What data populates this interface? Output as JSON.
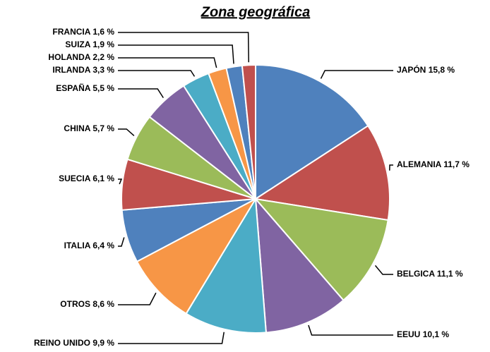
{
  "chart_data": {
    "type": "pie",
    "title": "Zona geográfica",
    "categories": [
      "JAPÓN",
      "ALEMANIA",
      "BELGICA",
      "EEUU",
      "REINO UNIDO",
      "OTROS",
      "ITALIA",
      "SUECIA",
      "CHINA",
      "ESPAÑA",
      "IRLANDA",
      "HOLANDA",
      "SUIZA",
      "FRANCIA"
    ],
    "values": [
      15.8,
      11.7,
      11.1,
      10.1,
      9.9,
      8.6,
      6.4,
      6.1,
      5.7,
      5.5,
      3.3,
      2.2,
      1.9,
      1.6
    ],
    "value_labels": [
      "15,8 %",
      "11,7 %",
      "11,1 %",
      "10,1 %",
      "9,9 %",
      "8,6 %",
      "6,4 %",
      "6,1 %",
      "5,7 %",
      "5,5 %",
      "3,3 %",
      "2,2 %",
      "1,9 %",
      "1,6 %"
    ],
    "colors": [
      "#4f81bd",
      "#c0504d",
      "#9bbb59",
      "#8064a2",
      "#4bacc6",
      "#f79646",
      "#4f81bd",
      "#c0504d",
      "#9bbb59",
      "#8064a2",
      "#4bacc6",
      "#f79646",
      "#4f81bd",
      "#c0504d"
    ]
  }
}
